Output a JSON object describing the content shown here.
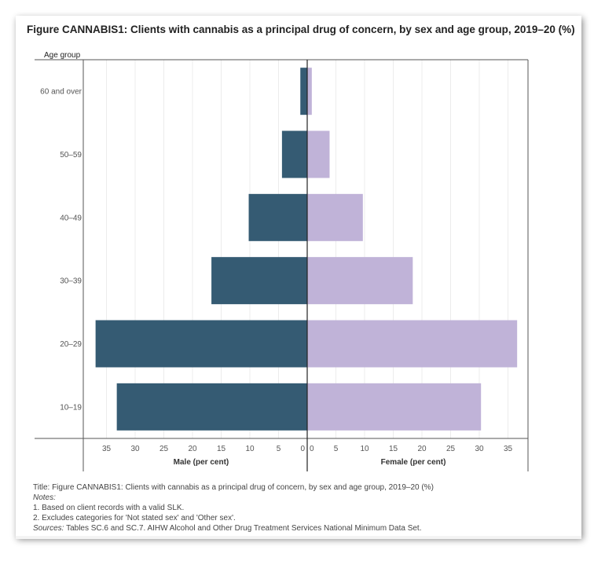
{
  "title": "Figure CANNABIS1: Clients with cannabis as a principal drug of concern, by sex and age group, 2019–20 (%)",
  "chart_data": {
    "type": "bar",
    "orientation": "horizontal-population-pyramid",
    "y_axis_title": "Age group",
    "categories": [
      "60 and over",
      "50–59",
      "40–49",
      "30–39",
      "20–29",
      "10–19"
    ],
    "series": [
      {
        "name": "Male (per cent)",
        "values": [
          1.2,
          4.4,
          10.2,
          16.7,
          36.9,
          33.2
        ],
        "color": "#355b73"
      },
      {
        "name": "Female (per cent)",
        "values": [
          0.8,
          3.9,
          9.7,
          18.4,
          36.6,
          30.3
        ],
        "color": "#c0b3d8"
      }
    ],
    "male_ticks": [
      "35",
      "30",
      "25",
      "20",
      "15",
      "10",
      "5",
      "0"
    ],
    "female_ticks": [
      "0",
      "5",
      "10",
      "15",
      "20",
      "25",
      "30",
      "35"
    ],
    "xlim": [
      0,
      40
    ],
    "xlabel_left": "Male (per cent)",
    "xlabel_right": "Female (per cent)",
    "grid": true
  },
  "footer": {
    "title_line": "Title: Figure CANNABIS1: Clients with cannabis as a principal drug of concern, by sex and age group, 2019–20  (%)",
    "notes_label": "Notes:",
    "note1": "1. Based on client records with a valid SLK.",
    "note2": "2. Excludes categories for 'Not stated sex' and 'Other sex'.",
    "sources_label": "Sources:",
    "sources_text": " Tables SC.6 and SC.7. AIHW Alcohol and Other Drug Treatment Services National Minimum Data Set."
  }
}
